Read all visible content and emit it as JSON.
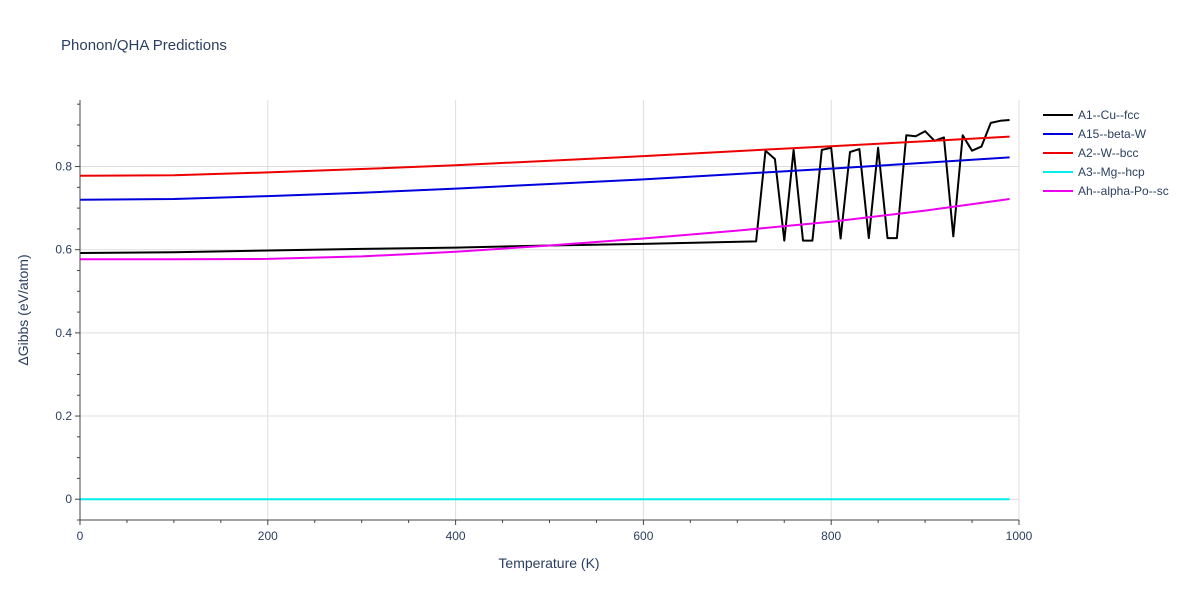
{
  "chart_data": {
    "type": "line",
    "title": "Phonon/QHA Predictions",
    "xlabel": "Temperature (K)",
    "ylabel": "ΔGibbs (eV/atom)",
    "xlim": [
      0,
      1000
    ],
    "ylim": [
      -0.05,
      0.96
    ],
    "xticks": [
      0,
      200,
      400,
      600,
      800,
      1000
    ],
    "yticks": [
      0,
      0.2,
      0.4,
      0.6,
      0.8
    ],
    "xtick_labels": [
      "0",
      "200",
      "400",
      "600",
      "800",
      "1000"
    ],
    "ytick_labels": [
      "0",
      "0.2",
      "0.4",
      "0.6",
      "0.8"
    ],
    "grid": true,
    "legend_position": "top-right",
    "series": [
      {
        "name": "A1--Cu--fcc",
        "color": "#000000",
        "x": [
          0,
          100,
          200,
          300,
          400,
          500,
          600,
          720,
          730,
          740,
          750,
          760,
          770,
          780,
          790,
          800,
          810,
          820,
          830,
          840,
          850,
          860,
          870,
          880,
          890,
          900,
          910,
          920,
          930,
          940,
          950,
          960,
          970,
          980,
          990
        ],
        "y": [
          0.592,
          0.594,
          0.598,
          0.602,
          0.605,
          0.61,
          0.614,
          0.62,
          0.838,
          0.818,
          0.622,
          0.84,
          0.622,
          0.622,
          0.84,
          0.845,
          0.627,
          0.835,
          0.842,
          0.628,
          0.845,
          0.628,
          0.628,
          0.875,
          0.873,
          0.885,
          0.862,
          0.87,
          0.632,
          0.875,
          0.838,
          0.848,
          0.905,
          0.91,
          0.912
        ]
      },
      {
        "name": "A15--beta-W",
        "color": "#0000dd",
        "x": [
          0,
          100,
          200,
          300,
          400,
          500,
          600,
          700,
          800,
          900,
          990
        ],
        "y": [
          0.72,
          0.722,
          0.729,
          0.737,
          0.747,
          0.758,
          0.769,
          0.782,
          0.795,
          0.809,
          0.822
        ]
      },
      {
        "name": "A2--W--bcc",
        "color": "#ee0000",
        "x": [
          0,
          100,
          200,
          300,
          400,
          500,
          600,
          700,
          800,
          900,
          990
        ],
        "y": [
          0.778,
          0.779,
          0.786,
          0.794,
          0.803,
          0.814,
          0.825,
          0.837,
          0.849,
          0.861,
          0.872
        ]
      },
      {
        "name": "A3--Mg--hcp",
        "color": "#00eeee",
        "x": [
          0,
          990
        ],
        "y": [
          0,
          0
        ]
      },
      {
        "name": "Ah--alpha-Po--sc",
        "color": "#ee00ee",
        "x": [
          0,
          100,
          200,
          300,
          400,
          500,
          600,
          700,
          800,
          900,
          990
        ],
        "y": [
          0.577,
          0.577,
          0.578,
          0.584,
          0.595,
          0.61,
          0.627,
          0.646,
          0.667,
          0.694,
          0.722
        ]
      }
    ]
  }
}
